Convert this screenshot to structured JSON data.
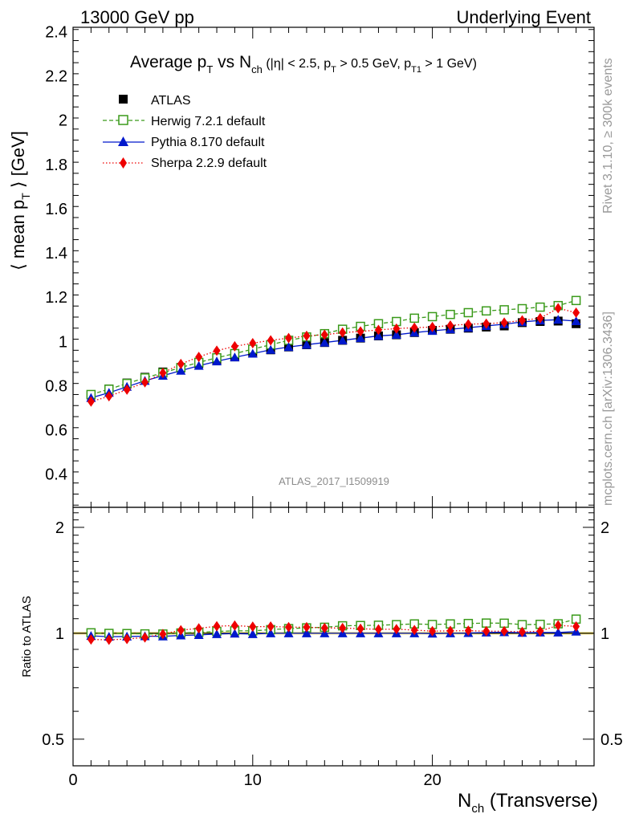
{
  "header": {
    "left": "13000 GeV pp",
    "right": "Underlying Event"
  },
  "watermark": "ATLAS_2017_I1509919",
  "side_labels": {
    "rivet": "Rivet 3.1.10, ≥ 300k events",
    "mcplots": "mcplots.cern.ch [arXiv:1306.3436]"
  },
  "colors": {
    "atlas": "#000000",
    "herwig": "#3a9a1a",
    "pythia": "#0018cc",
    "sherpa": "#ee0000"
  },
  "chart_data": [
    {
      "type": "scatter",
      "title_parts": {
        "a": "Average p",
        "a_sub": "T",
        "b": " vs N",
        "b_sub": "ch",
        "c": " (|η| < 2.5, p",
        "c_sub": "T",
        "d": " > 0.5 GeV, p",
        "d_sub": "T1",
        "e": " > 1 GeV)"
      },
      "ylabel_parts": {
        "a": "⟨ mean p",
        "sub": "T",
        "b": " ⟩ [GeV]"
      },
      "xlim": [
        0,
        29
      ],
      "ylim": [
        0.25,
        2.42
      ],
      "yticks": [
        0.4,
        0.6,
        0.8,
        1,
        1.2,
        1.4,
        1.6,
        1.8,
        2,
        2.2,
        2.4
      ],
      "ytick_labels": [
        "0.4",
        "0.6",
        "0.8",
        "1",
        "1.2",
        "1.4",
        "1.6",
        "1.8",
        "2",
        "2.2",
        "2.4"
      ],
      "x": [
        1,
        2,
        3,
        4,
        5,
        6,
        7,
        8,
        9,
        10,
        11,
        12,
        13,
        14,
        15,
        16,
        17,
        18,
        19,
        20,
        21,
        22,
        23,
        24,
        25,
        26,
        27,
        28
      ],
      "legend_position": "top-left",
      "series": [
        {
          "name": "ATLAS",
          "marker": "square-filled",
          "values": [
            0.758,
            0.785,
            0.812,
            0.838,
            0.862,
            0.88,
            0.9,
            0.915,
            0.93,
            0.95,
            0.962,
            0.975,
            0.985,
            0.995,
            1.005,
            1.015,
            1.025,
            1.03,
            1.04,
            1.05,
            1.055,
            1.06,
            1.065,
            1.07,
            1.085,
            1.09,
            1.092,
            1.08
          ]
        },
        {
          "name": "Herwig 7.2.1 default",
          "marker": "square-open",
          "line": "dashed",
          "values": [
            0.76,
            0.784,
            0.81,
            0.835,
            0.858,
            0.882,
            0.905,
            0.926,
            0.945,
            0.965,
            0.985,
            1.005,
            1.02,
            1.035,
            1.055,
            1.068,
            1.08,
            1.09,
            1.105,
            1.112,
            1.122,
            1.13,
            1.138,
            1.143,
            1.148,
            1.155,
            1.162,
            1.185
          ]
        },
        {
          "name": "Pythia 8.170 default",
          "marker": "triangle-filled",
          "line": "solid",
          "values": [
            0.745,
            0.768,
            0.795,
            0.822,
            0.845,
            0.868,
            0.89,
            0.91,
            0.928,
            0.945,
            0.962,
            0.975,
            0.985,
            0.995,
            1.005,
            1.015,
            1.025,
            1.03,
            1.04,
            1.048,
            1.055,
            1.062,
            1.07,
            1.078,
            1.088,
            1.095,
            1.098,
            1.092
          ]
        },
        {
          "name": "Sherpa 2.2.9 default",
          "marker": "diamond-filled",
          "line": "dotted",
          "values": [
            0.728,
            0.752,
            0.782,
            0.815,
            0.858,
            0.898,
            0.93,
            0.958,
            0.978,
            0.992,
            1.005,
            1.015,
            1.025,
            1.03,
            1.04,
            1.045,
            1.052,
            1.058,
            1.062,
            1.065,
            1.072,
            1.078,
            1.08,
            1.085,
            1.095,
            1.105,
            1.15,
            1.13
          ]
        }
      ]
    },
    {
      "type": "scatter",
      "ylabel": "Ratio to ATLAS",
      "xlabel_parts": {
        "a": "N",
        "sub": "ch",
        "b": " (Transverse)"
      },
      "xlim": [
        0,
        29
      ],
      "xticks": [
        0,
        10,
        20
      ],
      "xtick_labels": [
        "0",
        "10",
        "20"
      ],
      "ylim": [
        0.42,
        2.28
      ],
      "yscale": "log",
      "yticks": [
        0.5,
        1,
        2
      ],
      "ytick_labels": [
        "0.5",
        "1",
        "2"
      ],
      "x": [
        1,
        2,
        3,
        4,
        5,
        6,
        7,
        8,
        9,
        10,
        11,
        12,
        13,
        14,
        15,
        16,
        17,
        18,
        19,
        20,
        21,
        22,
        23,
        24,
        25,
        26,
        27,
        28
      ],
      "series": [
        {
          "name": "Herwig 7.2.1 default",
          "values": [
            1.003,
            0.999,
            0.998,
            0.996,
            0.995,
            1.002,
            1.006,
            1.012,
            1.016,
            1.016,
            1.024,
            1.031,
            1.036,
            1.04,
            1.05,
            1.052,
            1.054,
            1.058,
            1.063,
            1.059,
            1.063,
            1.066,
            1.069,
            1.068,
            1.058,
            1.06,
            1.064,
            1.097
          ]
        },
        {
          "name": "Pythia 8.170 default",
          "values": [
            0.983,
            0.978,
            0.979,
            0.981,
            0.98,
            0.986,
            0.989,
            0.995,
            0.998,
            0.995,
            1.0,
            1.0,
            1.0,
            1.0,
            1.0,
            1.0,
            1.0,
            1.0,
            1.0,
            0.998,
            1.0,
            1.002,
            1.005,
            1.007,
            1.003,
            1.005,
            1.005,
            1.011
          ]
        },
        {
          "name": "Sherpa 2.2.9 default",
          "values": [
            0.96,
            0.958,
            0.963,
            0.973,
            0.995,
            1.02,
            1.033,
            1.047,
            1.052,
            1.044,
            1.045,
            1.041,
            1.041,
            1.035,
            1.035,
            1.03,
            1.026,
            1.027,
            1.021,
            1.014,
            1.016,
            1.017,
            1.014,
            1.014,
            1.009,
            1.014,
            1.053,
            1.046
          ]
        }
      ]
    }
  ]
}
